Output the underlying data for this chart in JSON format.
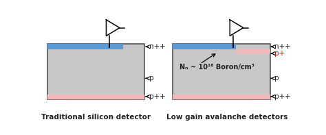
{
  "bg_color": "#ffffff",
  "detector_fill": "#c8c8c8",
  "detector_edge": "#555555",
  "n_layer_color": "#5b9bd5",
  "p_layer_color": "#f4b8b8",
  "text_color": "#222222",
  "red_color": "#ff0000",
  "labels": {
    "n_pp_left": "n++",
    "n_pp_right": "n++",
    "p_left": "p",
    "p_right": "p",
    "p_pp_left": "p++",
    "p_pp_right": "p++",
    "p_plus": "p+",
    "nd_label": "Nₙ ~ 10¹⁶ Boron/cm³"
  },
  "title_left": "Traditional silicon detector",
  "title_right": "Low gain avalanche detectors"
}
